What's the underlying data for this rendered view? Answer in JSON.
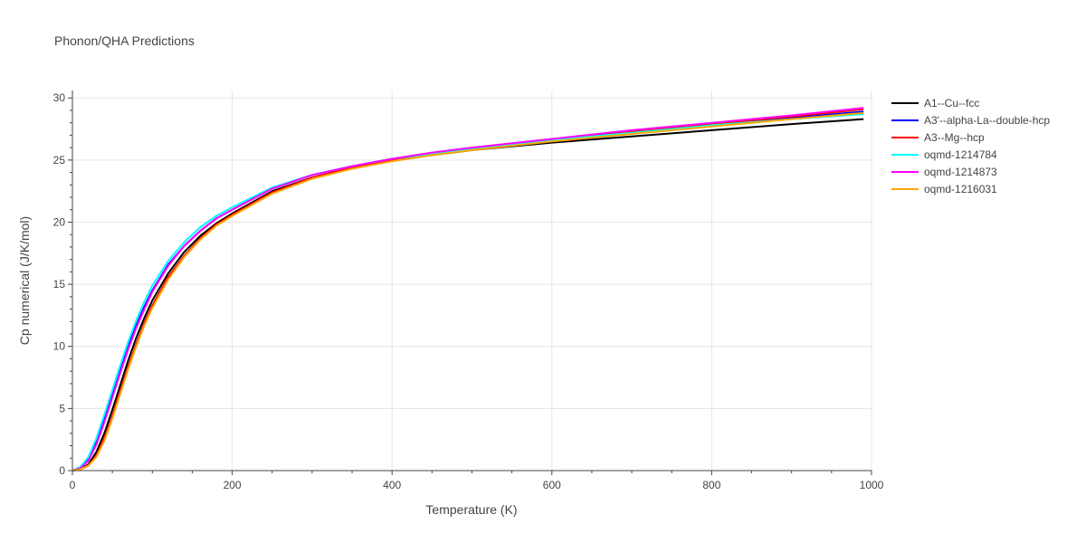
{
  "chart_data": {
    "type": "line",
    "title": "Phonon/QHA Predictions",
    "xlabel": "Temperature (K)",
    "ylabel": "Cp numerical (J/K/mol)",
    "xlim": [
      0,
      1000
    ],
    "ylim": [
      0,
      30.6
    ],
    "xticks": [
      0,
      200,
      400,
      600,
      800,
      1000
    ],
    "xtick_labels": [
      "0",
      "200",
      "400",
      "600",
      "800",
      "1000"
    ],
    "yticks": [
      0,
      5,
      10,
      15,
      20,
      25,
      30
    ],
    "ytick_labels": [
      "0",
      "5",
      "10",
      "15",
      "20",
      "25",
      "30"
    ],
    "grid": true,
    "legend_position": "top-right outside",
    "x": [
      0,
      10,
      20,
      30,
      40,
      50,
      60,
      70,
      80,
      90,
      100,
      120,
      140,
      160,
      180,
      200,
      250,
      300,
      350,
      400,
      450,
      500,
      600,
      700,
      800,
      900,
      990
    ],
    "series": [
      {
        "name": "A1--Cu--fcc",
        "color": "#000000",
        "values": [
          0,
          0.1,
          0.5,
          1.5,
          3.0,
          4.9,
          6.9,
          8.9,
          10.7,
          12.3,
          13.7,
          15.9,
          17.6,
          18.9,
          19.9,
          20.7,
          22.5,
          23.6,
          24.4,
          25.0,
          25.4,
          25.8,
          26.4,
          26.9,
          27.4,
          27.9,
          28.3
        ]
      },
      {
        "name": "A3'--alpha-La--double-hcp",
        "color": "#0000ff",
        "values": [
          0,
          0.2,
          0.9,
          2.3,
          4.1,
          6.1,
          8.1,
          10.0,
          11.7,
          13.2,
          14.5,
          16.6,
          18.1,
          19.3,
          20.3,
          21.0,
          22.7,
          23.8,
          24.5,
          25.1,
          25.5,
          25.9,
          26.6,
          27.2,
          27.8,
          28.4,
          28.9
        ]
      },
      {
        "name": "A3--Mg--hcp",
        "color": "#ff0000",
        "values": [
          0,
          0.1,
          0.4,
          1.2,
          2.6,
          4.4,
          6.4,
          8.4,
          10.2,
          11.9,
          13.3,
          15.6,
          17.3,
          18.7,
          19.8,
          20.6,
          22.4,
          23.6,
          24.4,
          25.0,
          25.5,
          25.9,
          26.6,
          27.3,
          27.9,
          28.5,
          29.1
        ]
      },
      {
        "name": "oqmd-1214784",
        "color": "#00ffff",
        "values": [
          0,
          0.3,
          1.1,
          2.6,
          4.5,
          6.5,
          8.5,
          10.4,
          12.1,
          13.6,
          14.9,
          16.9,
          18.4,
          19.6,
          20.5,
          21.2,
          22.8,
          23.8,
          24.5,
          25.1,
          25.5,
          25.9,
          26.6,
          27.2,
          27.8,
          28.3,
          28.7
        ]
      },
      {
        "name": "oqmd-1214873",
        "color": "#ff00ff",
        "values": [
          0,
          0.2,
          0.8,
          2.1,
          3.9,
          5.9,
          7.9,
          9.8,
          11.5,
          13.0,
          14.4,
          16.5,
          18.1,
          19.3,
          20.3,
          21.0,
          22.7,
          23.8,
          24.5,
          25.1,
          25.6,
          26.0,
          26.7,
          27.4,
          28.0,
          28.6,
          29.2
        ]
      },
      {
        "name": "oqmd-1216031",
        "color": "#ffa500",
        "values": [
          0,
          0.1,
          0.4,
          1.1,
          2.4,
          4.2,
          6.2,
          8.2,
          10.0,
          11.7,
          13.1,
          15.4,
          17.2,
          18.6,
          19.7,
          20.5,
          22.3,
          23.5,
          24.3,
          24.9,
          25.4,
          25.8,
          26.5,
          27.1,
          27.7,
          28.3,
          28.8
        ]
      }
    ]
  }
}
